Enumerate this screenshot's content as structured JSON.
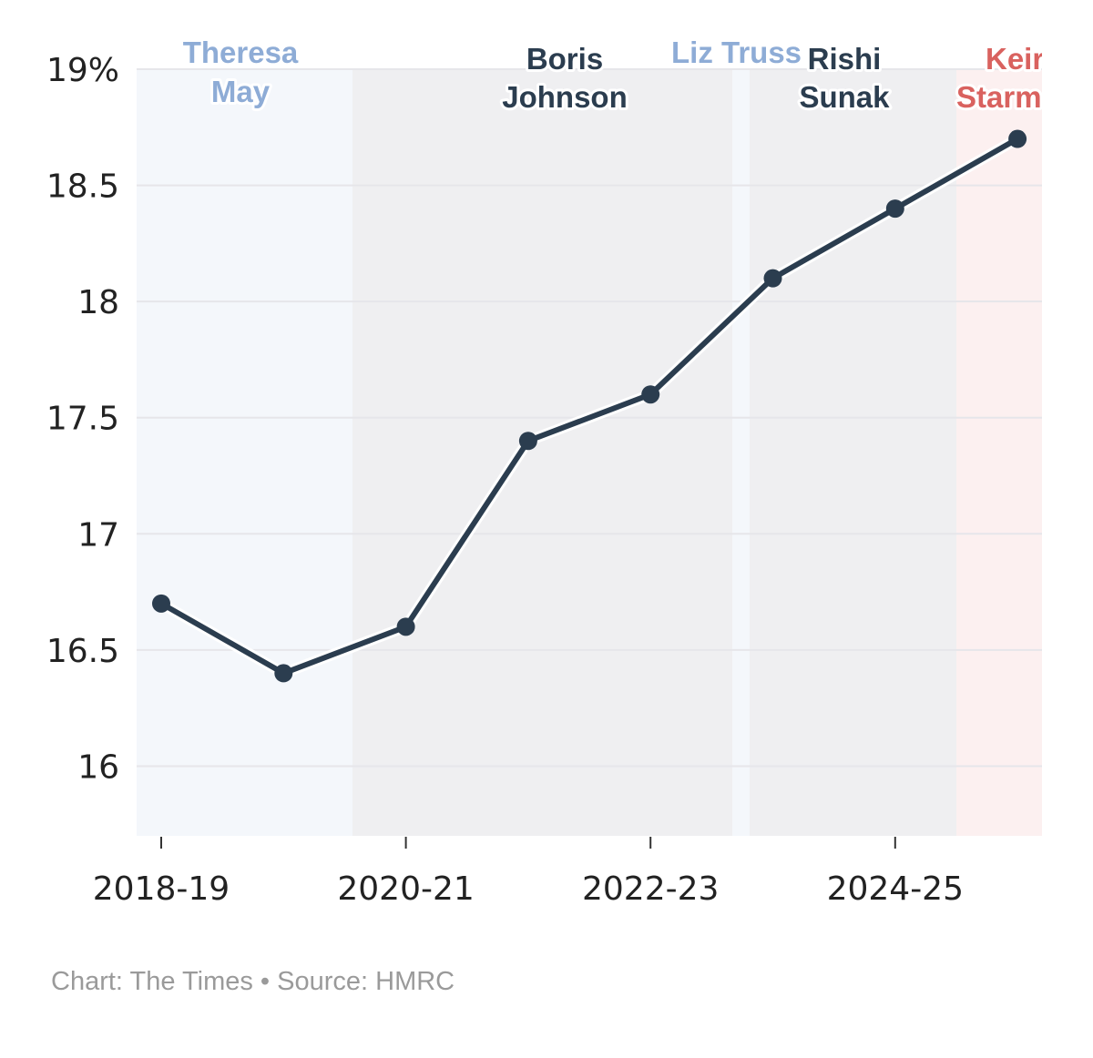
{
  "chart_data": {
    "type": "line",
    "title": "",
    "xlabel": "",
    "ylabel": "",
    "x": [
      "2018-19",
      "2019-20",
      "2020-21",
      "2021-22",
      "2022-23",
      "2023-24",
      "2024-25",
      "2025-26"
    ],
    "x_tick_labels": [
      "2018-19",
      "2020-21",
      "2022-23",
      "2024-25"
    ],
    "series": [
      {
        "values": [
          16.7,
          16.4,
          16.6,
          17.4,
          17.6,
          18.1,
          18.4,
          18.7
        ],
        "color": "#2b3d4f"
      }
    ],
    "ylim": [
      15.7,
      19.0
    ],
    "y_ticks": [
      16,
      16.5,
      17,
      17.5,
      18,
      18.5,
      19
    ],
    "y_tick_labels": [
      "16",
      "16.5",
      "17",
      "17.5",
      "18",
      "18.5",
      "19%"
    ],
    "grid": true,
    "eras": [
      {
        "label_lines": [
          "Theresa",
          "May"
        ],
        "start": "2018-19",
        "end": "2020-21",
        "fill": "#f4f7fb",
        "text_color": "#8eacd6"
      },
      {
        "label_lines": [
          "Boris",
          "Johnson"
        ],
        "start": "2020-21",
        "end": "2023-24",
        "fill": "#efeff1",
        "text_color": "#2b3d4f"
      },
      {
        "label_lines": [
          "Liz Truss"
        ],
        "start": "2023-24",
        "end": "2023-24",
        "fill": "#f4f7fb",
        "text_color": "#8eacd6"
      },
      {
        "label_lines": [
          "Rishi",
          "Sunak"
        ],
        "start": "2023-24",
        "end": "2025-26",
        "fill": "#efeff1",
        "text_color": "#2b3d4f"
      },
      {
        "label_lines": [
          "Keir",
          "Starmer"
        ],
        "start": "2025-26",
        "end": "2025-26",
        "fill": "#fcf0f0",
        "text_color": "#d9625f"
      }
    ]
  },
  "source_text": "Chart: The Times • Source: HMRC"
}
